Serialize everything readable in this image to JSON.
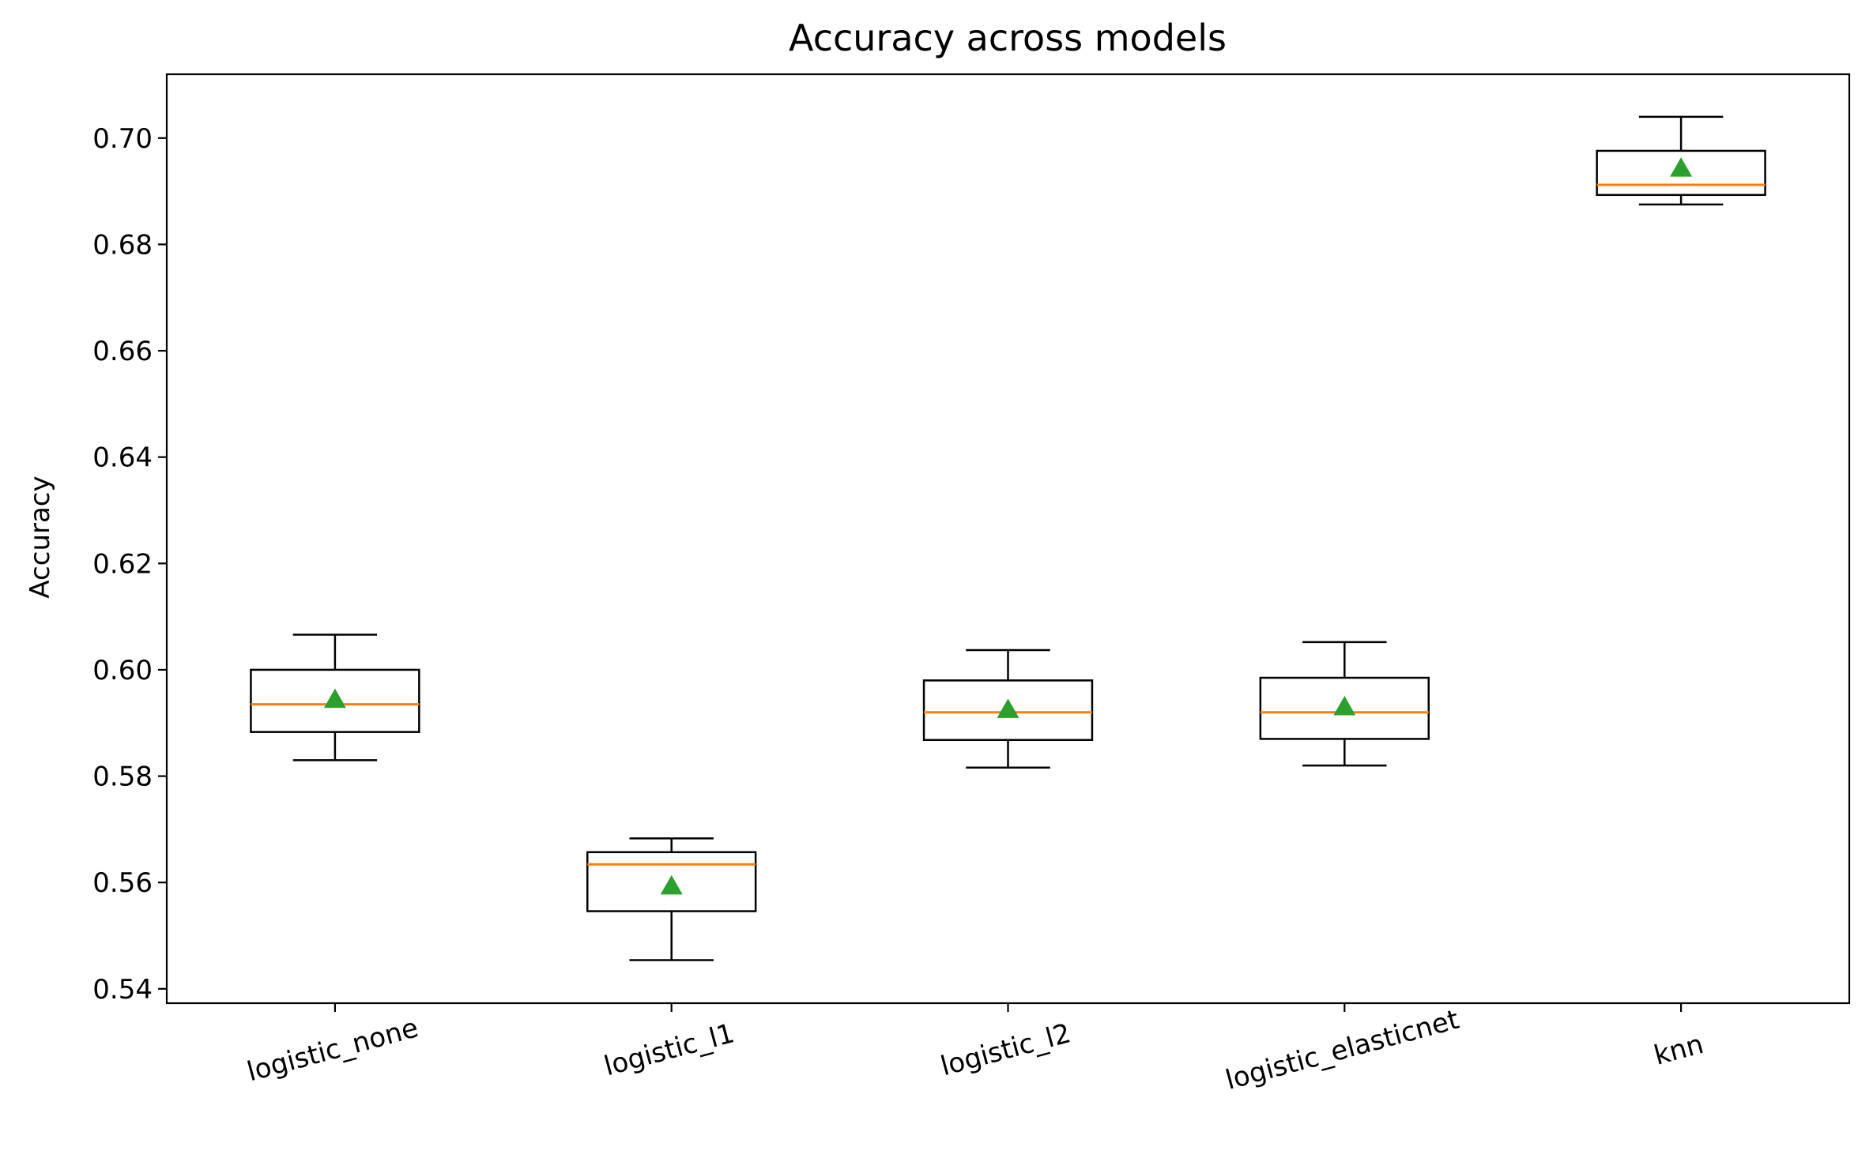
{
  "chart_data": {
    "type": "box",
    "title": "Accuracy across models",
    "xlabel": "",
    "ylabel": "Accuracy",
    "ylim": [
      0.5373,
      0.712
    ],
    "yticks": [
      0.54,
      0.56,
      0.58,
      0.6,
      0.62,
      0.64,
      0.66,
      0.68,
      0.7
    ],
    "ytick_labels": [
      "0.54",
      "0.56",
      "0.58",
      "0.60",
      "0.62",
      "0.64",
      "0.66",
      "0.68",
      "0.70"
    ],
    "categories": [
      "logistic_none",
      "logistic_l1",
      "logistic_l2",
      "logistic_elasticnet",
      "knn"
    ],
    "boxes": [
      {
        "category": "logistic_none",
        "whisker_low": 0.583,
        "q1": 0.5883,
        "median": 0.5935,
        "q3": 0.6,
        "whisker_high": 0.6066,
        "mean": 0.5944
      },
      {
        "category": "logistic_l1",
        "whisker_low": 0.5454,
        "q1": 0.5546,
        "median": 0.5634,
        "q3": 0.5657,
        "whisker_high": 0.5683,
        "mean": 0.5593
      },
      {
        "category": "logistic_l2",
        "whisker_low": 0.5816,
        "q1": 0.5868,
        "median": 0.592,
        "q3": 0.598,
        "whisker_high": 0.6037,
        "mean": 0.5925
      },
      {
        "category": "logistic_elasticnet",
        "whisker_low": 0.582,
        "q1": 0.587,
        "median": 0.592,
        "q3": 0.5985,
        "whisker_high": 0.6052,
        "mean": 0.593
      },
      {
        "category": "knn",
        "whisker_low": 0.6875,
        "q1": 0.6893,
        "median": 0.6912,
        "q3": 0.6976,
        "whisker_high": 0.704,
        "mean": 0.6943
      }
    ],
    "colors": {
      "box": "#000000",
      "median": "#ff7f0e",
      "mean_marker": "#2ca02c"
    },
    "grid": false,
    "legend": "none",
    "xtick_rotation_deg": 15
  }
}
